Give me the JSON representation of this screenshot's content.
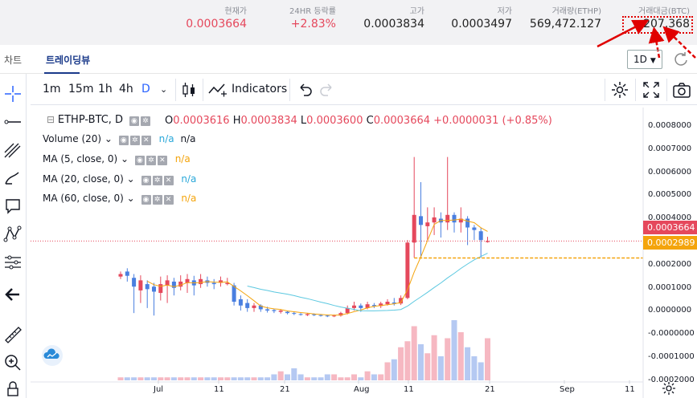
{
  "stats": [
    {
      "label": "현재가",
      "value": "0.0003664",
      "tone": "red"
    },
    {
      "label": "24HR 등락률",
      "value": "+2.83%",
      "tone": "red"
    },
    {
      "label": "고가",
      "value": "0.0003834",
      "tone": "dark"
    },
    {
      "label": "저가",
      "value": "0.0003497",
      "tone": "dark"
    },
    {
      "label": "거래량(ETHP)",
      "value": "569,472.127",
      "tone": "dark"
    },
    {
      "label": "거래대금(BTC)",
      "value": "207.368",
      "tone": "dark"
    }
  ],
  "tabs": {
    "chart": "차트",
    "trading_view": "트레이딩뷰"
  },
  "interval_select": "1D",
  "toolbar": {
    "intervals": [
      "1m",
      "15m",
      "1h",
      "4h",
      "D"
    ],
    "indicators_label": "Indicators"
  },
  "legend": {
    "symbol": "ETHP-BTC, D",
    "ohlc": {
      "O": "0.0003616",
      "H": "0.0003834",
      "L": "0.0003600",
      "C": "0.0003664"
    },
    "change": "+0.0000031 (+0.85%)"
  },
  "indicators": [
    {
      "name": "Volume (20)",
      "v1": "n/a",
      "v2": "n/a"
    },
    {
      "name": "MA (5, close, 0)",
      "v1": "n/a"
    },
    {
      "name": "MA (20, close, 0)",
      "v1": "n/a"
    },
    {
      "name": "MA (60, close, 0)",
      "v1": "n/a"
    }
  ],
  "price_labels": {
    "last": "0.0003664",
    "ma": "0.0002989"
  },
  "icons": {
    "left_tools": [
      "crosshair-icon",
      "trend-line-icon",
      "fib-icon",
      "brush-icon",
      "text-icon",
      "pattern-icon",
      "measure-icon",
      "arrow-left-icon",
      "ruler-icon",
      "zoom-icon"
    ],
    "toolbar": [
      "candle-style-icon",
      "indicators-icon",
      "undo-icon",
      "redo-icon",
      "settings-icon",
      "fullscreen-icon",
      "camera-icon"
    ]
  },
  "colors": {
    "up": "#e5485c",
    "down": "#4a7fe0",
    "ma5": "#f4a40c",
    "ma20": "#f08a3c",
    "ma60": "#5bc8e0"
  },
  "chart_data": {
    "type": "candlestick",
    "y_axis_ticks": [
      "0.0008000",
      "0.0007000",
      "0.0006000",
      "0.0005000",
      "0.0004000",
      "0.0003000",
      "0.0002000",
      "0.0001000",
      "0.0000000",
      "-0.0000000",
      "-0.0001000",
      "-0.0002000"
    ],
    "x_axis_ticks": [
      "Jul",
      "11",
      "21",
      "Aug",
      "11",
      "21",
      "Sep",
      "11"
    ],
    "ylim": [
      -0.0002,
      0.00082
    ],
    "candles": [
      {
        "o": 0.000225,
        "c": 0.000235,
        "h": 0.000245,
        "l": 0.000215
      },
      {
        "o": 0.000245,
        "c": 0.000228,
        "h": 0.000258,
        "l": 0.000205
      },
      {
        "o": 0.00022,
        "c": 0.000185,
        "h": 0.000235,
        "l": 8e-05
      },
      {
        "o": 0.00017,
        "c": 0.00021,
        "h": 0.00023,
        "l": 0.00012
      },
      {
        "o": 0.000195,
        "c": 0.000175,
        "h": 0.00021,
        "l": 0.0001
      },
      {
        "o": 0.000185,
        "c": 0.000165,
        "h": 0.0002,
        "l": 7e-05
      },
      {
        "o": 0.00016,
        "c": 0.000195,
        "h": 0.000225,
        "l": 0.00013
      },
      {
        "o": 0.00019,
        "c": 0.00021,
        "h": 0.00023,
        "l": 0.00012
      },
      {
        "o": 0.000205,
        "c": 0.00018,
        "h": 0.00022,
        "l": 0.00015
      },
      {
        "o": 0.000185,
        "c": 0.000205,
        "h": 0.00023,
        "l": 0.00017
      },
      {
        "o": 0.0002,
        "c": 0.000215,
        "h": 0.000235,
        "l": 0.00016
      },
      {
        "o": 0.00021,
        "c": 0.00019,
        "h": 0.000228,
        "l": 0.00015
      },
      {
        "o": 0.000195,
        "c": 0.000215,
        "h": 0.000235,
        "l": 0.00018
      },
      {
        "o": 0.00021,
        "c": 0.0002,
        "h": 0.000225,
        "l": 0.000185
      },
      {
        "o": 0.0002,
        "c": 0.000195,
        "h": 0.000215,
        "l": 0.000175
      },
      {
        "o": 0.0002,
        "c": 0.00021,
        "h": 0.000225,
        "l": 0.000185
      },
      {
        "o": 0.000195,
        "c": 0.0002,
        "h": 0.00022,
        "l": 0.00019
      },
      {
        "o": 0.00019,
        "c": 0.000125,
        "h": 0.0002,
        "l": 0.00011
      },
      {
        "o": 0.000135,
        "c": 0.00011,
        "h": 0.00015,
        "l": 9e-05
      },
      {
        "o": 0.00012,
        "c": 0.0001,
        "h": 0.000135,
        "l": 8.5e-05
      },
      {
        "o": 0.0001,
        "c": 0.00011,
        "h": 0.00012,
        "l": 8.5e-05
      },
      {
        "o": 0.00011,
        "c": 9.5e-05,
        "h": 0.000115,
        "l": 8.5e-05
      },
      {
        "o": 9.5e-05,
        "c": 9e-05,
        "h": 0.000105,
        "l": 8.2e-05
      },
      {
        "o": 9.2e-05,
        "c": 8.8e-05,
        "h": 9.8e-05,
        "l": 8e-05
      },
      {
        "o": 8.5e-05,
        "c": 9e-05,
        "h": 9.5e-05,
        "l": 7.8e-05
      },
      {
        "o": 8.5e-05,
        "c": 8e-05,
        "h": 9e-05,
        "l": 7.5e-05
      },
      {
        "o": 8e-05,
        "c": 7.8e-05,
        "h": 8.5e-05,
        "l": 7.2e-05
      },
      {
        "o": 7.6e-05,
        "c": 7.4e-05,
        "h": 8e-05,
        "l": 7e-05
      },
      {
        "o": 7.2e-05,
        "c": 7.6e-05,
        "h": 8e-05,
        "l": 6.8e-05
      },
      {
        "o": 7.5e-05,
        "c": 7.3e-05,
        "h": 7.9e-05,
        "l": 6.8e-05
      },
      {
        "o": 7.2e-05,
        "c": 7.1e-05,
        "h": 7.6e-05,
        "l": 6.6e-05
      },
      {
        "o": 7e-05,
        "c": 6.8e-05,
        "h": 7.4e-05,
        "l": 6.4e-05
      },
      {
        "o": 6.8e-05,
        "c": 7e-05,
        "h": 7.4e-05,
        "l": 6.4e-05
      },
      {
        "o": 7e-05,
        "c": 8e-05,
        "h": 8.5e-05,
        "l": 6.6e-05
      },
      {
        "o": 8e-05,
        "c": 0.0001,
        "h": 0.00011,
        "l": 7.5e-05
      },
      {
        "o": 0.0001,
        "c": 0.00011,
        "h": 0.000125,
        "l": 9e-05
      },
      {
        "o": 0.00011,
        "c": 0.0001,
        "h": 0.000118,
        "l": 8.5e-05
      },
      {
        "o": 0.0001,
        "c": 0.000115,
        "h": 0.000125,
        "l": 9.5e-05
      },
      {
        "o": 0.000112,
        "c": 0.000108,
        "h": 0.00012,
        "l": 0.0001
      },
      {
        "o": 0.000108,
        "c": 0.000118,
        "h": 0.000125,
        "l": 0.0001
      },
      {
        "o": 0.000115,
        "c": 0.000125,
        "h": 0.000135,
        "l": 0.00011
      },
      {
        "o": 0.000122,
        "c": 0.000118,
        "h": 0.00014,
        "l": 0.00011
      },
      {
        "o": 0.000118,
        "c": 0.00014,
        "h": 0.00015,
        "l": 0.000112
      },
      {
        "o": 0.00014,
        "c": 0.00036,
        "h": 0.00037,
        "l": 0.000135
      },
      {
        "o": 0.00036,
        "c": 0.00047,
        "h": 0.0007,
        "l": 0.0003
      },
      {
        "o": 0.000465,
        "c": 0.00043,
        "h": 0.0006,
        "l": 0.0003
      },
      {
        "o": 0.000425,
        "c": 0.00044,
        "h": 0.0005,
        "l": 0.00037
      },
      {
        "o": 0.00044,
        "c": 0.00046,
        "h": 0.0005,
        "l": 0.00039
      },
      {
        "o": 0.000455,
        "c": 0.00044,
        "h": 0.00048,
        "l": 0.00038
      },
      {
        "o": 0.00044,
        "c": 0.00047,
        "h": 0.0007,
        "l": 0.00041
      },
      {
        "o": 0.00047,
        "c": 0.00044,
        "h": 0.00048,
        "l": 0.0004
      },
      {
        "o": 0.00044,
        "c": 0.000455,
        "h": 0.0005,
        "l": 0.0004
      },
      {
        "o": 0.000455,
        "c": 0.00042,
        "h": 0.000465,
        "l": 0.00035
      },
      {
        "o": 0.00042,
        "c": 0.00041,
        "h": 0.00043,
        "l": 0.00037
      },
      {
        "o": 0.000405,
        "c": 0.00037,
        "h": 0.00042,
        "l": 0.0003
      },
      {
        "o": 0.000362,
        "c": 0.000366,
        "h": 0.000383,
        "l": 0.00036
      }
    ],
    "volumes": [
      1,
      1,
      1,
      1,
      1,
      1,
      1,
      1,
      1,
      1,
      1,
      1,
      1,
      1,
      1,
      1,
      1,
      1,
      1,
      1,
      1,
      1,
      1,
      2,
      3,
      2,
      4,
      2,
      1,
      1,
      1,
      2,
      2,
      1,
      1,
      2,
      1,
      3,
      2,
      2,
      6,
      7,
      11,
      13,
      18,
      12,
      9,
      15,
      8,
      14,
      20,
      16,
      11,
      8,
      6,
      14
    ],
    "volume_max": 20,
    "ma_level": 0.0002989
  }
}
